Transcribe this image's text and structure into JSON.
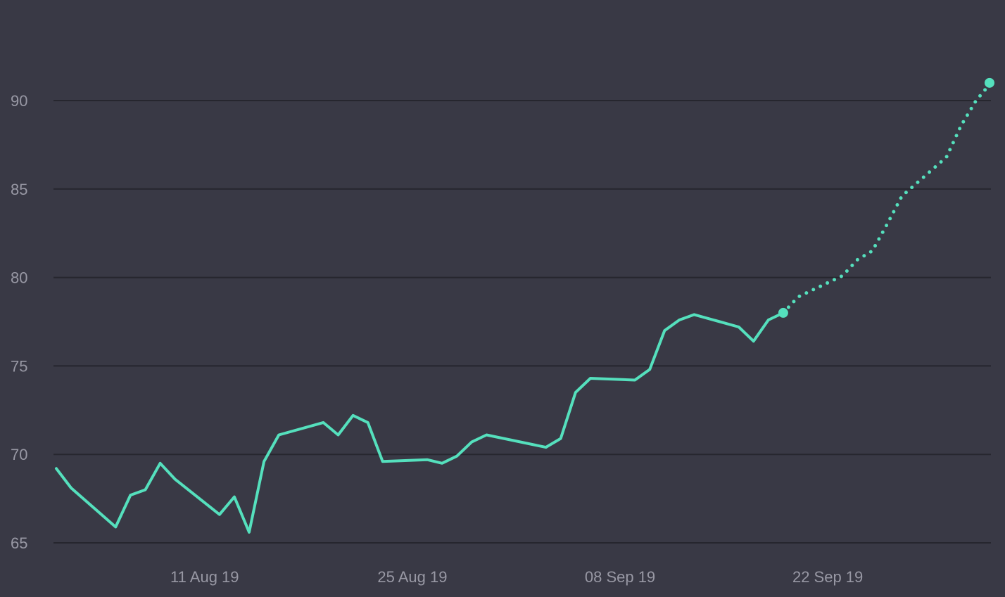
{
  "colors": {
    "background": "#393945",
    "gridline": "#26262e",
    "line": "#55e0bd",
    "tick_text": "#9898a4"
  },
  "chart_data": {
    "type": "line",
    "title": "",
    "xlabel": "",
    "ylabel": "",
    "grid": true,
    "legend": "none",
    "xlim": [
      "2019-08-01",
      "2019-10-03"
    ],
    "ylim": [
      64.5,
      95
    ],
    "x_ticks": [
      {
        "date": "2019-08-11",
        "label": "11 Aug 19"
      },
      {
        "date": "2019-08-25",
        "label": "25 Aug 19"
      },
      {
        "date": "2019-09-08",
        "label": "08 Sep 19"
      },
      {
        "date": "2019-09-22",
        "label": "22 Sep 19"
      }
    ],
    "y_ticks": [
      65,
      70,
      75,
      80,
      85,
      90
    ],
    "series": [
      {
        "style": "solid",
        "points": [
          {
            "x": "2019-08-01",
            "y": 69.2
          },
          {
            "x": "2019-08-02",
            "y": 68.1
          },
          {
            "x": "2019-08-05",
            "y": 65.9
          },
          {
            "x": "2019-08-06",
            "y": 67.7
          },
          {
            "x": "2019-08-07",
            "y": 68.0
          },
          {
            "x": "2019-08-08",
            "y": 69.5
          },
          {
            "x": "2019-08-09",
            "y": 68.6
          },
          {
            "x": "2019-08-12",
            "y": 66.6
          },
          {
            "x": "2019-08-13",
            "y": 67.6
          },
          {
            "x": "2019-08-14",
            "y": 65.6
          },
          {
            "x": "2019-08-15",
            "y": 69.6
          },
          {
            "x": "2019-08-16",
            "y": 71.1
          },
          {
            "x": "2019-08-19",
            "y": 71.8
          },
          {
            "x": "2019-08-20",
            "y": 71.1
          },
          {
            "x": "2019-08-21",
            "y": 72.2
          },
          {
            "x": "2019-08-22",
            "y": 71.8
          },
          {
            "x": "2019-08-23",
            "y": 69.6
          },
          {
            "x": "2019-08-26",
            "y": 69.7
          },
          {
            "x": "2019-08-27",
            "y": 69.5
          },
          {
            "x": "2019-08-28",
            "y": 69.9
          },
          {
            "x": "2019-08-29",
            "y": 70.7
          },
          {
            "x": "2019-08-30",
            "y": 71.1
          },
          {
            "x": "2019-09-03",
            "y": 70.4
          },
          {
            "x": "2019-09-04",
            "y": 70.9
          },
          {
            "x": "2019-09-05",
            "y": 73.5
          },
          {
            "x": "2019-09-06",
            "y": 74.3
          },
          {
            "x": "2019-09-09",
            "y": 74.2
          },
          {
            "x": "2019-09-10",
            "y": 74.8
          },
          {
            "x": "2019-09-11",
            "y": 77.0
          },
          {
            "x": "2019-09-12",
            "y": 77.6
          },
          {
            "x": "2019-09-13",
            "y": 77.9
          },
          {
            "x": "2019-09-16",
            "y": 77.2
          },
          {
            "x": "2019-09-17",
            "y": 76.4
          },
          {
            "x": "2019-09-18",
            "y": 77.6
          },
          {
            "x": "2019-09-19",
            "y": 78.0
          }
        ]
      },
      {
        "style": "dotted",
        "points": [
          {
            "x": "2019-09-19",
            "y": 78.0
          },
          {
            "x": "2019-09-20",
            "y": 78.9
          },
          {
            "x": "2019-09-23",
            "y": 80.1
          },
          {
            "x": "2019-09-24",
            "y": 81.0
          },
          {
            "x": "2019-09-25",
            "y": 81.5
          },
          {
            "x": "2019-09-26",
            "y": 83.0
          },
          {
            "x": "2019-09-27",
            "y": 84.6
          },
          {
            "x": "2019-09-30",
            "y": 86.8
          },
          {
            "x": "2019-10-01",
            "y": 88.6
          },
          {
            "x": "2019-10-02",
            "y": 90.0
          },
          {
            "x": "2019-10-03",
            "y": 91.0
          }
        ]
      }
    ]
  }
}
